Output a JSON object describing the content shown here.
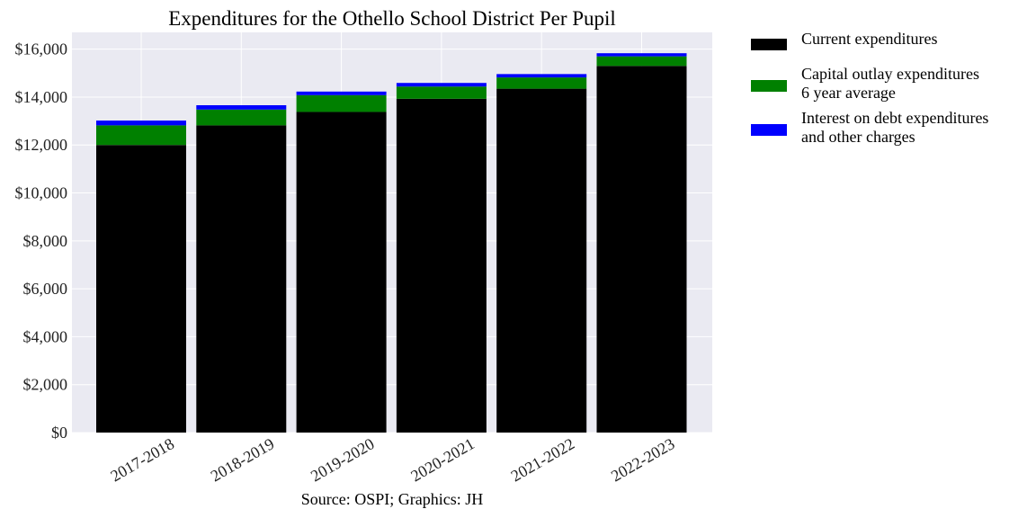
{
  "chart_data": {
    "type": "bar",
    "stacked": true,
    "title": "Expenditures for the Othello School District Per Pupil",
    "source": "Source: OSPI; Graphics: JH",
    "xlabel": "",
    "ylabel": "",
    "categories": [
      "2017-2018",
      "2018-2019",
      "2019-2020",
      "2020-2021",
      "2021-2022",
      "2022-2023"
    ],
    "series": [
      {
        "name": "Current expenditures",
        "color": "#000000",
        "values": [
          12000,
          12820,
          13380,
          13930,
          14350,
          15300
        ]
      },
      {
        "name": "Capital outlay expenditures\n6 year average",
        "color": "#008000",
        "values": [
          820,
          660,
          700,
          510,
          470,
          400
        ]
      },
      {
        "name": "Interest on debt expenditures\nand other charges",
        "color": "#0000ff",
        "values": [
          200,
          180,
          150,
          150,
          140,
          130
        ]
      }
    ],
    "ylim": [
      0,
      16700
    ],
    "yticks": [
      0,
      2000,
      4000,
      6000,
      8000,
      10000,
      12000,
      14000,
      16000
    ],
    "ytick_labels": [
      "$0",
      "$2,000",
      "$4,000",
      "$6,000",
      "$8,000",
      "$10,000",
      "$12,000",
      "$14,000",
      "$16,000"
    ],
    "grid": true,
    "legend_position": "outside-right-top"
  }
}
